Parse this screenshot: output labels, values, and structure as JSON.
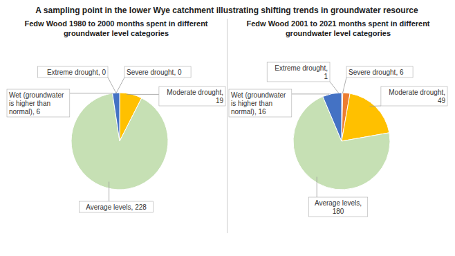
{
  "title": "A sampling point in the lower Wye catchment illustrating shifting trends in groundwater resource",
  "chart_data": [
    {
      "type": "pie",
      "title": "Fedw Wood 1980 to 2000 months spent in different\ngroundwater level categories",
      "categories": [
        "Extreme drought",
        "Severe drought",
        "Moderate drought",
        "Average levels",
        "Wet (groundwater is higher than normal)"
      ],
      "values": [
        0,
        0,
        19,
        228,
        6
      ],
      "value_labels": [
        "Extreme drought, 0",
        "Severe drought, 0",
        "Moderate drought,\n19",
        "Average levels, 228",
        "Wet (groundwater\nis higher than\nnormal), 6"
      ],
      "colors": [
        "#4472c4",
        "#ed7d31",
        "#ffc000",
        "#c6e0b4",
        "#4472c4"
      ],
      "data_labels": true
    },
    {
      "type": "pie",
      "title": "Fedw Wood 2001 to 2021 months spent in different\ngroundwater level categories",
      "categories": [
        "Extreme drought",
        "Severe drought",
        "Moderate drought",
        "Average levels",
        "Wet (groundwater is higher than normal)"
      ],
      "values": [
        1,
        6,
        49,
        180,
        16
      ],
      "value_labels": [
        "Extreme drought,\n1",
        "Severe drought, 6",
        "Moderate drought,\n49",
        "Average levels,\n180",
        "Wet (groundwater\nis higher than\nnormal), 16"
      ],
      "colors": [
        "#c0504d",
        "#ed7d31",
        "#ffc000",
        "#c6e0b4",
        "#4472c4"
      ],
      "data_labels": true
    }
  ]
}
